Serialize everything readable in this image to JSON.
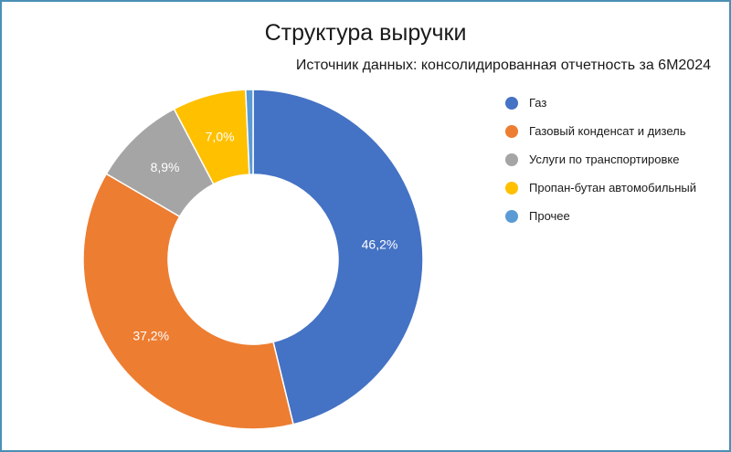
{
  "chart_data": {
    "type": "pie",
    "title": "Структура выручки",
    "subtitle": "Источник данных: консолидированная отчетность за 6М2024",
    "donut": true,
    "legend_position": "right",
    "series": [
      {
        "name": "Газ",
        "value": 46.2,
        "label": "46,2%",
        "color": "#4472c4"
      },
      {
        "name": "Газовый конденсат и дизель",
        "value": 37.2,
        "label": "37,2%",
        "color": "#ed7d31"
      },
      {
        "name": "Услуги по транспортировке",
        "value": 8.9,
        "label": "8,9%",
        "color": "#a5a5a5"
      },
      {
        "name": "Пропан-бутан автомобильный",
        "value": 7.0,
        "label": "7,0%",
        "color": "#ffc000"
      },
      {
        "name": "Прочее",
        "value": 0.7,
        "label": "",
        "color": "#5b9bd5"
      }
    ]
  }
}
